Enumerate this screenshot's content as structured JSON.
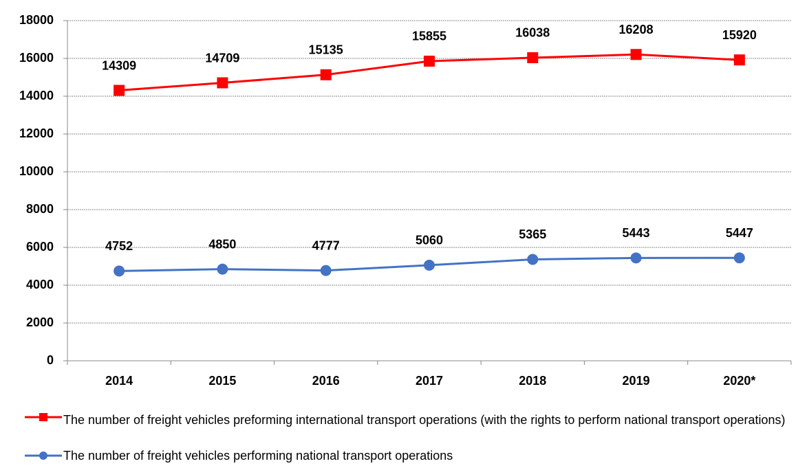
{
  "chart_data": {
    "type": "line",
    "categories": [
      "2014",
      "2015",
      "2016",
      "2017",
      "2018",
      "2019",
      "2020*"
    ],
    "series": [
      {
        "name": "The number of freight vehicles preforming international transport operations (with the rights to perform national transport operations)",
        "color": "#ff0000",
        "marker": "square",
        "values": [
          14309,
          14709,
          15135,
          15855,
          16038,
          16208,
          15920
        ]
      },
      {
        "name": "The number of freight vehicles performing national transport operations",
        "color": "#4472c4",
        "marker": "circle",
        "values": [
          4752,
          4850,
          4777,
          5060,
          5365,
          5443,
          5447
        ]
      }
    ],
    "ylim": [
      0,
      18000
    ],
    "yticks": [
      0,
      2000,
      4000,
      6000,
      8000,
      10000,
      12000,
      14000,
      16000,
      18000
    ],
    "grid": true,
    "legend": "bottom"
  }
}
